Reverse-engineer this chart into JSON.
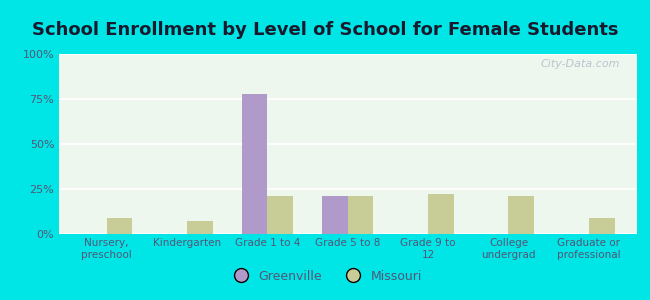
{
  "title": "School Enrollment by Level of School for Female Students",
  "categories": [
    "Nursery,\npreschool",
    "Kindergarten",
    "Grade 1 to 4",
    "Grade 5 to 8",
    "Grade 9 to\n12",
    "College\nundergrad",
    "Graduate or\nprofessional"
  ],
  "greenville": [
    0,
    0,
    78,
    21,
    0,
    0,
    0
  ],
  "missouri": [
    9,
    7,
    21,
    21,
    22,
    21,
    9
  ],
  "greenville_color": "#b09aca",
  "missouri_color": "#c8cc96",
  "background_outer": "#00e5e5",
  "background_inner": "#eef7ee",
  "ylim": [
    0,
    100
  ],
  "yticks": [
    0,
    25,
    50,
    75,
    100
  ],
  "ytick_labels": [
    "0%",
    "25%",
    "50%",
    "75%",
    "100%"
  ],
  "title_fontsize": 13,
  "bar_width": 0.32,
  "legend_greenville": "Greenville",
  "legend_missouri": "Missouri",
  "title_color": "#1a1a2e",
  "tick_color": "#555577",
  "watermark": "City-Data.com"
}
